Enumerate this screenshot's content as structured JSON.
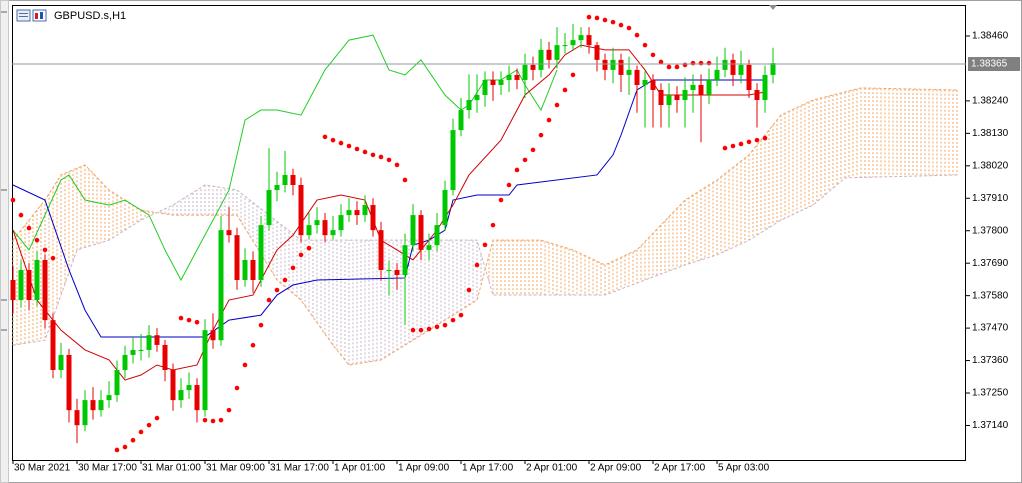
{
  "chart_data": {
    "type": "candlestick",
    "title": "GBPUSD.s,H1",
    "categories": [
      "30 Mar 2021",
      null,
      null,
      null,
      null,
      null,
      null,
      null,
      "30 Mar 17:00",
      null,
      null,
      null,
      null,
      null,
      null,
      null,
      "31 Mar 01:00",
      null,
      null,
      null,
      null,
      null,
      null,
      null,
      "31 Mar 09:00",
      null,
      null,
      null,
      null,
      null,
      null,
      null,
      "31 Mar 17:00",
      null,
      null,
      null,
      null,
      null,
      null,
      null,
      "1 Apr 01:00",
      null,
      null,
      null,
      null,
      null,
      null,
      null,
      "1 Apr 09:00",
      null,
      null,
      null,
      null,
      null,
      null,
      null,
      "1 Apr 17:00",
      null,
      null,
      null,
      null,
      null,
      null,
      null,
      "2 Apr 01:00",
      null,
      null,
      null,
      null,
      null,
      null,
      null,
      "2 Apr 09:00",
      null,
      null,
      null,
      null,
      null,
      null,
      null,
      "2 Apr 17:00",
      null,
      null,
      null,
      null,
      null,
      null,
      null,
      "5 Apr 03:00",
      null,
      null,
      null,
      null,
      null,
      null,
      null
    ],
    "open": [
      1.37633,
      1.37565,
      1.37667,
      1.37565,
      1.37701,
      1.37497,
      1.37328,
      1.37379,
      1.37192,
      1.37141,
      1.37226,
      1.37192,
      1.37226,
      1.37243,
      1.37328,
      1.37379,
      1.37396,
      1.37396,
      1.37446,
      1.37413,
      1.37328,
      1.37226,
      1.3726,
      1.37277,
      1.37192,
      1.37463,
      1.37429,
      1.37802,
      1.37785,
      1.37633,
      1.37701,
      1.37633,
      1.37819,
      1.37938,
      1.37955,
      1.37989,
      1.37955,
      1.37785,
      1.37819,
      1.37836,
      1.37785,
      1.37802,
      1.37853,
      1.3787,
      1.37853,
      1.37887,
      1.37802,
      1.37667,
      1.37667,
      1.3765,
      1.37751,
      1.37853,
      1.37735,
      1.37751,
      1.37819,
      1.37938,
      1.38141,
      1.38209,
      1.38243,
      1.3826,
      1.38311,
      1.38294,
      1.38311,
      1.38328,
      1.38311,
      1.38362,
      1.38345,
      1.38413,
      1.38379,
      1.38429,
      1.38429,
      1.38446,
      1.38463,
      1.38429,
      1.38379,
      1.38345,
      1.38379,
      1.38328,
      1.38345,
      1.38294,
      1.38311,
      1.38277,
      1.38226,
      1.3826,
      1.38243,
      1.38277,
      1.38294,
      1.3826,
      1.38311,
      1.38345,
      1.38379,
      1.38328,
      1.38362,
      1.38277,
      1.38243,
      1.38328
    ],
    "high": [
      1.3768,
      1.377,
      1.3769,
      1.3773,
      1.3772,
      1.3752,
      1.3742,
      1.374,
      1.3723,
      1.3726,
      1.3727,
      1.3726,
      1.3729,
      1.3736,
      1.3741,
      1.3744,
      1.3745,
      1.3748,
      1.3747,
      1.3743,
      1.3735,
      1.373,
      1.3732,
      1.373,
      1.375,
      1.3752,
      1.3785,
      1.3788,
      1.3781,
      1.3774,
      1.3773,
      1.3785,
      1.3808,
      1.38,
      1.3807,
      1.3801,
      1.3798,
      1.3786,
      1.3788,
      1.3786,
      1.3785,
      1.3789,
      1.3791,
      1.379,
      1.3792,
      1.3791,
      1.3783,
      1.377,
      1.3769,
      1.3779,
      1.3789,
      1.3787,
      1.3779,
      1.3786,
      1.3797,
      1.3818,
      1.3825,
      1.3833,
      1.3833,
      1.3834,
      1.3834,
      1.3834,
      1.3836,
      1.3835,
      1.384,
      1.3839,
      1.3845,
      1.3844,
      1.3849,
      1.3847,
      1.385,
      1.3849,
      1.3849,
      1.3844,
      1.384,
      1.3842,
      1.384,
      1.3839,
      1.3836,
      1.3834,
      1.3833,
      1.383,
      1.383,
      1.3829,
      1.3832,
      1.3833,
      1.3833,
      1.3835,
      1.3839,
      1.3842,
      1.384,
      1.3841,
      1.3838,
      1.383,
      1.3836,
      1.3842
    ],
    "low": [
      1.3752,
      1.3754,
      1.3753,
      1.37545,
      1.3747,
      1.373,
      1.373,
      1.3715,
      1.3708,
      1.3712,
      1.3716,
      1.3717,
      1.372,
      1.3722,
      1.373,
      1.3735,
      1.3736,
      1.3737,
      1.3739,
      1.3729,
      1.3719,
      1.372,
      1.3723,
      1.3715,
      1.3717,
      1.374,
      1.3741,
      1.3776,
      1.376,
      1.3761,
      1.3759,
      1.3761,
      1.378,
      1.379,
      1.3793,
      1.3792,
      1.3776,
      1.3777,
      1.3779,
      1.3776,
      1.3777,
      1.3778,
      1.3783,
      1.3782,
      1.3783,
      1.3778,
      1.3763,
      1.3758,
      1.376,
      1.3748,
      1.3773,
      1.377,
      1.377,
      1.3773,
      1.378,
      1.3792,
      1.3812,
      1.3818,
      1.382,
      1.3822,
      1.3824,
      1.3826,
      1.3827,
      1.3828,
      1.3825,
      1.3831,
      1.3832,
      1.3835,
      1.3835,
      1.384,
      1.3841,
      1.3842,
      1.384,
      1.3834,
      1.3831,
      1.383,
      1.3827,
      1.3826,
      1.382,
      1.3815,
      1.3815,
      1.3815,
      1.3815,
      1.382,
      1.3815,
      1.382,
      1.381,
      1.3823,
      1.3829,
      1.3832,
      1.3829,
      1.383,
      1.3825,
      1.3815,
      1.382,
      1.383
    ],
    "close": [
      1.37565,
      1.37667,
      1.37565,
      1.37701,
      1.37497,
      1.37328,
      1.37379,
      1.37192,
      1.37141,
      1.37226,
      1.37192,
      1.37226,
      1.37243,
      1.37328,
      1.37379,
      1.37396,
      1.37396,
      1.37446,
      1.37413,
      1.37328,
      1.37226,
      1.3726,
      1.37277,
      1.37192,
      1.37463,
      1.37429,
      1.37802,
      1.37785,
      1.37633,
      1.37701,
      1.37633,
      1.37819,
      1.37938,
      1.37955,
      1.37989,
      1.37955,
      1.37785,
      1.37819,
      1.37836,
      1.37785,
      1.37802,
      1.37853,
      1.3787,
      1.37853,
      1.37887,
      1.37802,
      1.37667,
      1.37667,
      1.3765,
      1.37751,
      1.37853,
      1.37735,
      1.37751,
      1.37819,
      1.37938,
      1.38141,
      1.38209,
      1.38243,
      1.3826,
      1.38311,
      1.38294,
      1.38311,
      1.38328,
      1.38311,
      1.38362,
      1.38345,
      1.38413,
      1.38379,
      1.38429,
      1.38429,
      1.38446,
      1.38463,
      1.38429,
      1.38379,
      1.38345,
      1.38379,
      1.38328,
      1.38345,
      1.38294,
      1.38311,
      1.38277,
      1.38226,
      1.3826,
      1.38243,
      1.38277,
      1.38294,
      1.3826,
      1.38311,
      1.38345,
      1.38379,
      1.38328,
      1.38362,
      1.38277,
      1.38243,
      1.38328,
      1.38368
    ],
    "up_color": "#00c800",
    "down_color": "#e80000",
    "ylim": [
      1.37023,
      1.38565
    ],
    "yticks": [
      {
        "value": 1.3846,
        "label": "1.38460"
      },
      {
        "value": 1.3824,
        "label": "1.38240"
      },
      {
        "value": 1.3813,
        "label": "1.38130"
      },
      {
        "value": 1.3802,
        "label": "1.38020"
      },
      {
        "value": 1.3791,
        "label": "1.37910"
      },
      {
        "value": 1.378,
        "label": "1.37800"
      },
      {
        "value": 1.3769,
        "label": "1.37690"
      },
      {
        "value": 1.3758,
        "label": "1.37580"
      },
      {
        "value": 1.3747,
        "label": "1.37470"
      },
      {
        "value": 1.3736,
        "label": "1.37360"
      },
      {
        "value": 1.3725,
        "label": "1.37250"
      },
      {
        "value": 1.3714,
        "label": "1.37140"
      }
    ],
    "grid": false,
    "last_price": 1.38365,
    "span_a": {
      "color": "#f4a460",
      "x": [
        0,
        4,
        6,
        9,
        12,
        16,
        20,
        28,
        33,
        36,
        40,
        42,
        46,
        50,
        54,
        58,
        60,
        66,
        70,
        74,
        78,
        84,
        88,
        92,
        96,
        100,
        106,
        118
      ],
      "values": [
        1.37768,
        1.37904,
        1.37989,
        1.38023,
        1.37938,
        1.3787,
        1.37853,
        1.37853,
        1.37633,
        1.37565,
        1.37412,
        1.37345,
        1.37362,
        1.37429,
        1.37497,
        1.37565,
        1.37768,
        1.37768,
        1.37735,
        1.37684,
        1.37735,
        1.37904,
        1.37972,
        1.38057,
        1.38192,
        1.38243,
        1.38284,
        1.38277
      ]
    },
    "span_b": {
      "color": "#c9b2c9",
      "x": [
        0,
        4,
        8,
        12,
        16,
        20,
        24,
        28,
        32,
        36,
        58,
        60,
        74,
        84,
        88,
        92,
        96,
        100,
        104,
        118
      ],
      "values": [
        1.37412,
        1.37429,
        1.37735,
        1.37768,
        1.37836,
        1.37887,
        1.37955,
        1.37938,
        1.37853,
        1.37768,
        1.37768,
        1.37582,
        1.37582,
        1.37684,
        1.37718,
        1.37768,
        1.37836,
        1.37887,
        1.37979,
        1.37989
      ]
    },
    "chikou": {
      "color": "#22cc22",
      "x": [
        0,
        2,
        6,
        7,
        9,
        12,
        14,
        17,
        19,
        21,
        23,
        25,
        27,
        29,
        31,
        33,
        36,
        39,
        42,
        45,
        47,
        49,
        51,
        54,
        56,
        57,
        59,
        61,
        63,
        64,
        66,
        68
      ],
      "values": [
        1.37802,
        1.37735,
        1.37972,
        1.37989,
        1.37904,
        1.37887,
        1.37904,
        1.37853,
        1.37735,
        1.37633,
        1.37735,
        1.37836,
        1.37938,
        1.38175,
        1.38209,
        1.38209,
        1.38192,
        1.38345,
        1.38446,
        1.38463,
        1.38345,
        1.38328,
        1.38379,
        1.3826,
        1.38209,
        1.38226,
        1.38311,
        1.38311,
        1.38345,
        1.38294,
        1.38209,
        1.38345
      ]
    },
    "kijun": {
      "color": "#0000c8",
      "x": [
        0,
        4,
        7,
        9,
        11,
        24,
        27,
        31,
        33,
        35,
        38,
        49,
        50,
        52,
        54,
        55,
        58,
        62,
        63,
        73,
        74,
        75,
        76,
        78,
        80,
        94
      ],
      "values": [
        1.37955,
        1.37904,
        1.37667,
        1.37531,
        1.3744,
        1.3744,
        1.37497,
        1.37514,
        1.37582,
        1.37616,
        1.37633,
        1.3764,
        1.37751,
        1.37768,
        1.37802,
        1.37904,
        1.37921,
        1.37921,
        1.37955,
        1.37989,
        1.38023,
        1.38057,
        1.38124,
        1.38277,
        1.38311,
        1.38311
      ]
    },
    "tenkan": {
      "color": "#d00000",
      "x": [
        0,
        3,
        6,
        9,
        12,
        14,
        16,
        18,
        20,
        23,
        25,
        27,
        30,
        33,
        35,
        38,
        41,
        44,
        46,
        48,
        50,
        53,
        55,
        57,
        61,
        64,
        67,
        69,
        71,
        74,
        77,
        79,
        81,
        85,
        88,
        92,
        94
      ],
      "values": [
        1.37802,
        1.37565,
        1.37463,
        1.37396,
        1.37362,
        1.37294,
        1.37311,
        1.37345,
        1.37328,
        1.37345,
        1.37463,
        1.37565,
        1.37582,
        1.37735,
        1.37785,
        1.37904,
        1.37921,
        1.37904,
        1.37768,
        1.37735,
        1.37701,
        1.37802,
        1.37887,
        1.37989,
        1.38107,
        1.3826,
        1.38328,
        1.38396,
        1.38429,
        1.38413,
        1.38413,
        1.38345,
        1.3826,
        1.3826,
        1.3826,
        1.3826,
        1.3827
      ]
    },
    "sar": {
      "color": "#ff0000",
      "x": [
        0,
        1,
        2,
        3,
        4,
        5,
        13,
        14,
        15,
        16,
        17,
        18,
        21,
        22,
        23,
        24,
        25,
        26,
        27,
        28,
        29,
        30,
        31,
        32,
        33,
        34,
        35,
        36,
        37,
        39,
        40,
        41,
        42,
        43,
        44,
        45,
        46,
        47,
        48,
        49,
        50,
        51,
        52,
        53,
        54,
        55,
        56,
        57,
        58,
        59,
        60,
        61,
        62,
        63,
        64,
        65,
        66,
        67,
        68,
        69,
        70,
        72,
        73,
        74,
        75,
        76,
        77,
        78,
        79,
        80,
        81,
        82,
        83,
        84,
        85,
        86,
        87,
        89,
        90,
        91,
        92,
        93,
        94
      ],
      "values": [
        1.37904,
        1.37853,
        1.37809,
        1.37768,
        1.37735,
        1.37707,
        1.37057,
        1.37067,
        1.3709,
        1.37118,
        1.37141,
        1.37165,
        1.37504,
        1.37497,
        1.3749,
        1.37158,
        1.37155,
        1.37158,
        1.37192,
        1.37267,
        1.37345,
        1.37412,
        1.3748,
        1.37565,
        1.37599,
        1.37633,
        1.37674,
        1.37718,
        1.37741,
        1.38118,
        1.38107,
        1.38097,
        1.38087,
        1.38077,
        1.38067,
        1.38057,
        1.3805,
        1.3804,
        1.38023,
        1.37972,
        1.37463,
        1.37463,
        1.37467,
        1.37474,
        1.3748,
        1.37497,
        1.37514,
        1.37599,
        1.37684,
        1.37752,
        1.37819,
        1.37904,
        1.37955,
        1.38006,
        1.3804,
        1.38074,
        1.38124,
        1.38175,
        1.38226,
        1.38277,
        1.38328,
        1.38524,
        1.38521,
        1.38514,
        1.38507,
        1.38497,
        1.38487,
        1.38463,
        1.38429,
        1.38396,
        1.38372,
        1.38355,
        1.38355,
        1.38362,
        1.38368,
        1.38368,
        1.38368,
        1.3808,
        1.38087,
        1.38094,
        1.38101,
        1.38107,
        1.38114
      ]
    }
  }
}
